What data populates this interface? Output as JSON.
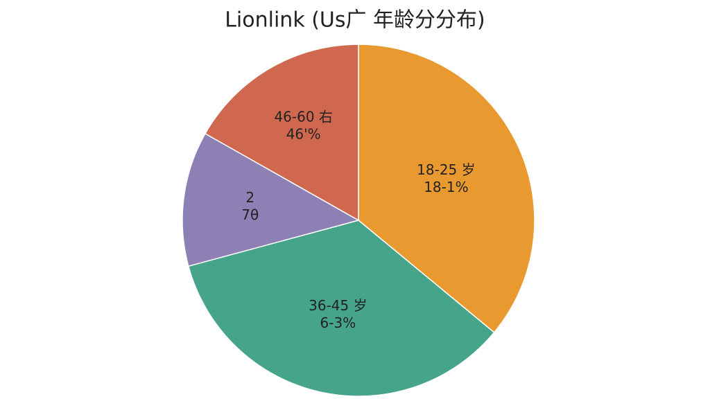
{
  "chart_data": {
    "type": "pie",
    "title": "Lionlink (Us广 年龄分分布)",
    "categories": [
      "18-25 岁",
      "36-45 岁",
      "2",
      "46-60 右"
    ],
    "annotations": [
      "18-1%",
      "6-3%",
      "7θ",
      "46'%"
    ],
    "values": [
      36.0,
      34.8,
      12.4,
      16.8
    ],
    "colors": [
      "#e8992f",
      "#45a48a",
      "#8c80b5",
      "#d06850"
    ],
    "start_angle": 0,
    "direction": "clockwise"
  }
}
